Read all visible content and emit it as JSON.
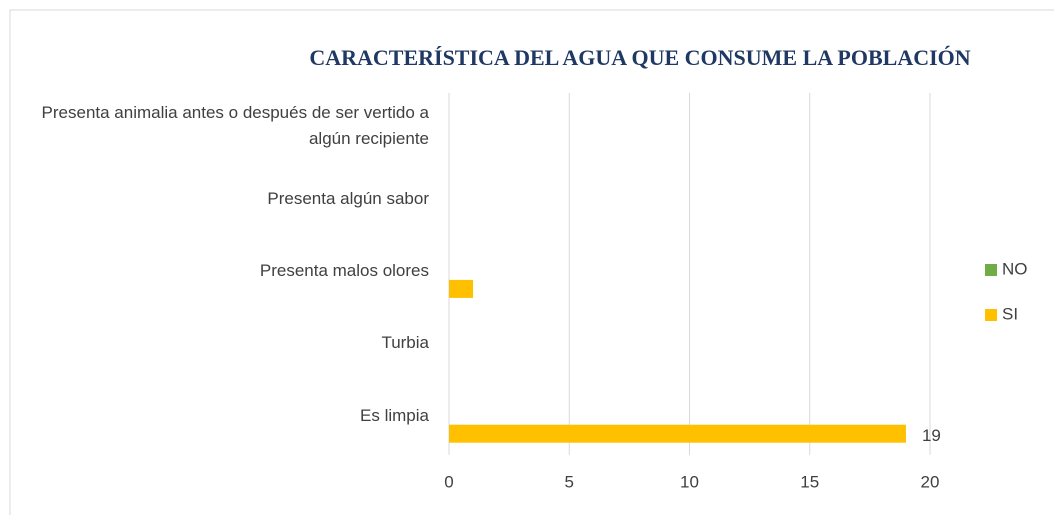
{
  "chart_data": {
    "type": "hbar",
    "title": "CARACTERÍSTICA DEL AGUA QUE CONSUME LA POBLACIÓN",
    "categories": [
      "Presenta animalia antes o después de ser vertido a algún recipiente",
      "Presenta algún sabor",
      "Presenta malos olores",
      "Turbia",
      "Es limpia"
    ],
    "series": [
      {
        "name": "NO",
        "color": "#70ad47",
        "values": [
          0,
          0,
          0,
          0,
          0
        ]
      },
      {
        "name": "SI",
        "color": "#ffc000",
        "values": [
          0,
          0,
          1,
          0,
          19
        ],
        "value_labels": [
          null,
          null,
          null,
          null,
          "19"
        ]
      }
    ],
    "xlim": [
      0,
      20
    ],
    "xticks": [
      0,
      5,
      10,
      15,
      20
    ],
    "grid": true,
    "legend": "right"
  }
}
